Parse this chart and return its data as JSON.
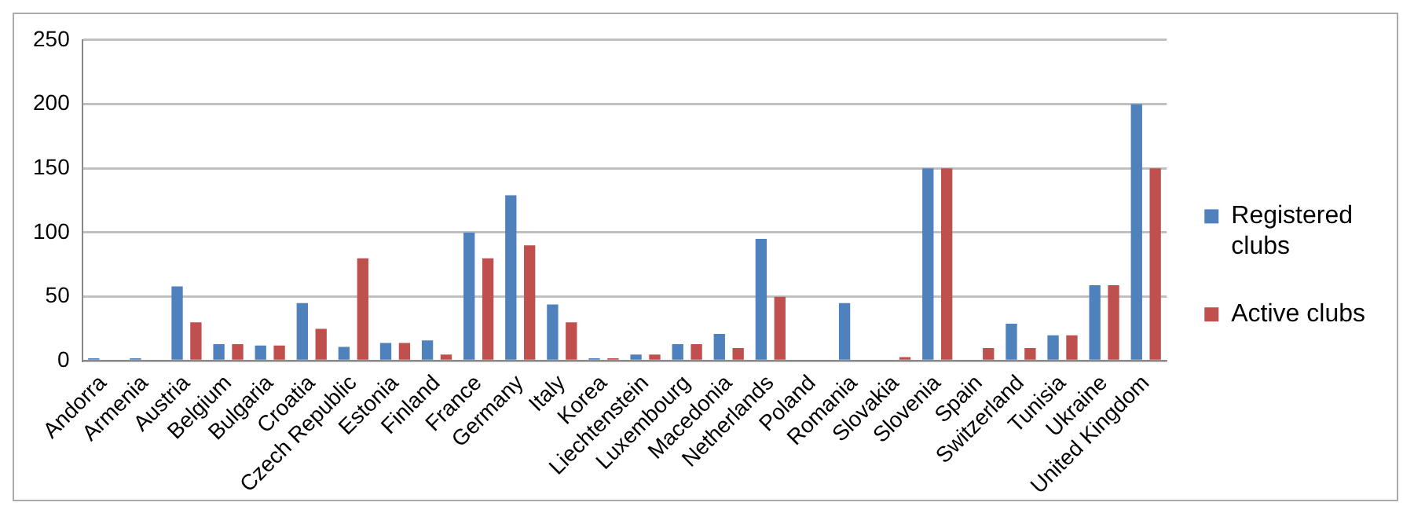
{
  "chart_data": {
    "type": "bar",
    "categories": [
      "Andorra",
      "Armenia",
      "Austria",
      "Belgium",
      "Bulgaria",
      "Croatia",
      "Czech Republic",
      "Estonia",
      "Finland",
      "France",
      "Germany",
      "Italy",
      "Korea",
      "Liechtenstein",
      "Luxembourg",
      "Macedonia",
      "Netherlands",
      "Poland",
      "Romania",
      "Slovakia",
      "Slovenia",
      "Spain",
      "Switzerland",
      "Tunisia",
      "Ukraine",
      "United Kingdom"
    ],
    "series": [
      {
        "name": "Registered clubs",
        "color": "#4f81bd",
        "values": [
          2,
          2,
          58,
          13,
          12,
          45,
          11,
          14,
          16,
          100,
          129,
          44,
          2,
          5,
          13,
          21,
          95,
          0,
          45,
          0,
          150,
          0,
          29,
          20,
          59,
          200
        ]
      },
      {
        "name": "Active clubs",
        "color": "#c0504d",
        "values": [
          1,
          0,
          30,
          13,
          12,
          25,
          80,
          14,
          5,
          80,
          90,
          30,
          2,
          5,
          13,
          10,
          50,
          0,
          0,
          3,
          150,
          10,
          10,
          20,
          59,
          150
        ]
      }
    ],
    "ylim": [
      0,
      250
    ],
    "yticks": [
      0,
      50,
      100,
      150,
      200,
      250
    ],
    "grid": "y",
    "legend": "right"
  }
}
